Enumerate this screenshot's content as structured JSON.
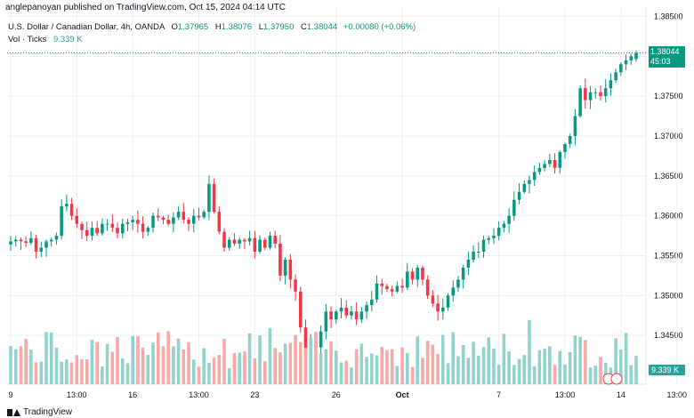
{
  "publisher": "anglepanoyan published on TradingView.com, Oct 15, 2024 04:14 UTC",
  "legend": {
    "symbol": "U.S. Dollar / Canadian Dollar, 4h, OANDA",
    "open_label": "O",
    "open": "1.37965",
    "high_label": "H",
    "high": "1.38076",
    "low_label": "L",
    "low": "1.37950",
    "close_label": "C",
    "close": "1.38044",
    "change": "+0.00080 (+0.06%)",
    "vol_label": "Vol · Ticks",
    "vol_value": "9.339 K"
  },
  "last_price": {
    "price": "1.38044",
    "countdown": "45:03"
  },
  "volume_tag": "9.339 K",
  "footer": {
    "brand": "TradingView"
  },
  "colors": {
    "up": "#089981",
    "down": "#f23645",
    "vol_up": "#92d2cc",
    "vol_down": "#f7a9a7",
    "grid": "#eef0f3",
    "text": "#131722"
  },
  "chart_data": {
    "type": "candlestick",
    "title": "U.S. Dollar / Canadian Dollar, 4h, OANDA",
    "ylim": [
      1.34,
      1.3855
    ],
    "y_ticks": [
      "1.38500",
      "1.38000",
      "1.37500",
      "1.37000",
      "1.36500",
      "1.36000",
      "1.35500",
      "1.35000",
      "1.34500"
    ],
    "x_ticks": [
      {
        "label": "9",
        "index": 0
      },
      {
        "label": "13:00",
        "index": 13
      },
      {
        "label": "16",
        "index": 24
      },
      {
        "label": "13:00",
        "index": 37
      },
      {
        "label": "23",
        "index": 48
      },
      {
        "label": "26",
        "index": 64
      },
      {
        "label": "Oct",
        "index": 77,
        "bold": true
      },
      {
        "label": "7",
        "index": 96
      },
      {
        "label": "13:00",
        "index": 109
      },
      {
        "label": "14",
        "index": 120
      },
      {
        "label": "13:00",
        "index": 131
      }
    ],
    "closes": [
      1.3568,
      1.357,
      1.3568,
      1.3566,
      1.3572,
      1.3555,
      1.356,
      1.3568,
      1.357,
      1.3575,
      1.3612,
      1.3615,
      1.36,
      1.359,
      1.3582,
      1.3575,
      1.3585,
      1.3578,
      1.359,
      1.359,
      1.3585,
      1.3578,
      1.359,
      1.3592,
      1.3595,
      1.359,
      1.358,
      1.3585,
      1.36,
      1.3598,
      1.3595,
      1.359,
      1.3598,
      1.3605,
      1.3595,
      1.359,
      1.36,
      1.3598,
      1.3605,
      1.364,
      1.3605,
      1.358,
      1.356,
      1.357,
      1.3565,
      1.357,
      1.3568,
      1.3572,
      1.3555,
      1.357,
      1.356,
      1.3575,
      1.3565,
      1.3525,
      1.3545,
      1.352,
      1.3505,
      1.346,
      1.3425,
      1.344,
      1.3435,
      1.3455,
      1.348,
      1.347,
      1.348,
      1.3485,
      1.3475,
      1.348,
      1.347,
      1.348,
      1.3488,
      1.3495,
      1.3515,
      1.3512,
      1.3508,
      1.3505,
      1.3512,
      1.351,
      1.353,
      1.352,
      1.3535,
      1.352,
      1.35,
      1.349,
      1.348,
      1.3485,
      1.35,
      1.351,
      1.352,
      1.3535,
      1.3545,
      1.3555,
      1.3555,
      1.357,
      1.3572,
      1.3575,
      1.3585,
      1.359,
      1.36,
      1.362,
      1.363,
      1.364,
      1.3645,
      1.3655,
      1.366,
      1.3665,
      1.367,
      1.366,
      1.368,
      1.369,
      1.37,
      1.3725,
      1.376,
      1.3745,
      1.3755,
      1.3755,
      1.375,
      1.376,
      1.377,
      1.378,
      1.379,
      1.3795,
      1.38,
      1.3804
    ],
    "last_close": 1.38044,
    "volume_scale": [
      0,
      10
    ]
  }
}
